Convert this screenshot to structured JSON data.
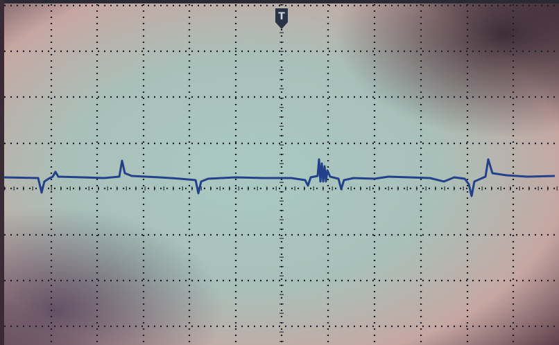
{
  "screen": {
    "trigger_marker": "T"
  }
}
